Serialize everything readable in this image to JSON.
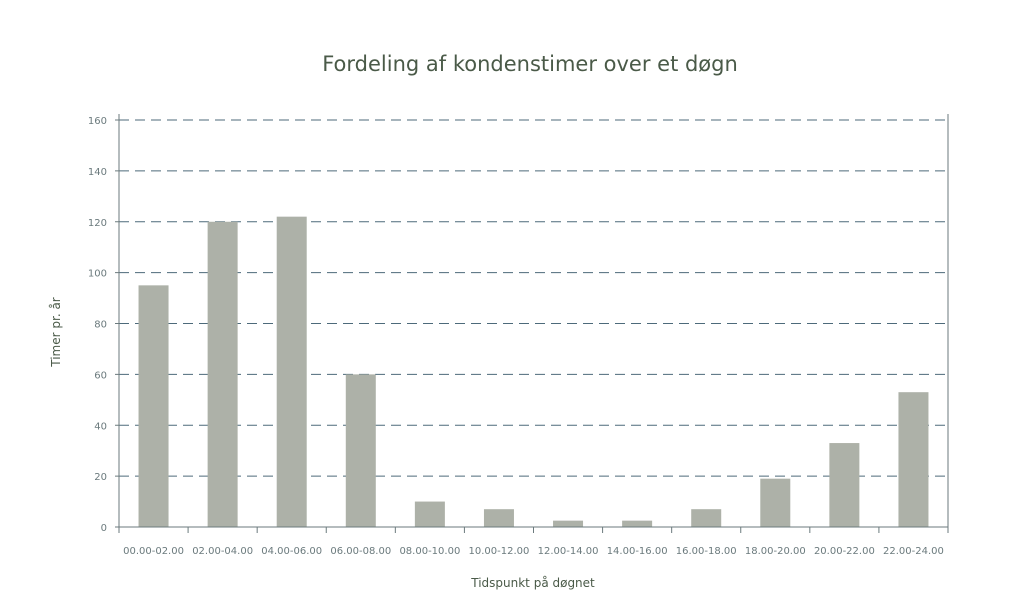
{
  "chart_data": {
    "type": "bar",
    "title": "Fordeling af kondenstimer over et døgn",
    "xlabel": "Tidspunkt på døgnet",
    "ylabel": "Timer pr. år",
    "categories": [
      "00.00-02.00",
      "02.00-04.00",
      "04.00-06.00",
      "06.00-08.00",
      "08.00-10.00",
      "10.00-12.00",
      "12.00-14.00",
      "14.00-16.00",
      "16.00-18.00",
      "18.00-20.00",
      "20.00-22.00",
      "22.00-24.00"
    ],
    "values": [
      95,
      120,
      122,
      60,
      10,
      7,
      2.5,
      2.5,
      7,
      19,
      33,
      53
    ],
    "ylim": [
      0,
      160
    ],
    "yticks": [
      0,
      20,
      40,
      60,
      80,
      100,
      120,
      140,
      160
    ],
    "grid": true,
    "colors": {
      "bar": "#adb1a8",
      "grid": "#4d6a7a",
      "axis": "#6b7a7d",
      "text": "#4a5a48"
    }
  }
}
